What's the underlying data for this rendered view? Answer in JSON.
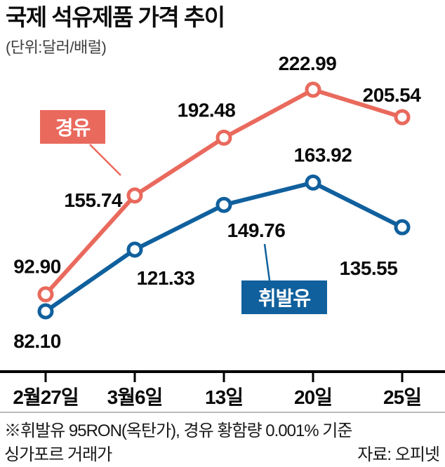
{
  "page": {
    "title": "국제 석유제품 가격 추이",
    "subtitle": "(단위:달러/배럴)",
    "footnote_line1": "※휘발유 95RON(옥탄가), 경유 황함량 0.001% 기준",
    "footnote_line2": "싱가포르 거래가",
    "source": "자료: 오피넷"
  },
  "colors": {
    "diesel": "#e96a5d",
    "gasoline": "#10609d",
    "axis": "#000000",
    "label_text": "#0a0a0a"
  },
  "chart_data": {
    "type": "line",
    "title": "국제 석유제품 가격 추이",
    "unit_label": "(단위:달러/배럴)",
    "categories": [
      "2월27일",
      "3월6일",
      "13일",
      "20일",
      "25일"
    ],
    "series": [
      {
        "name": "경유",
        "color": "#e96a5d",
        "values": [
          92.9,
          155.74,
          192.48,
          222.99,
          205.54
        ]
      },
      {
        "name": "휘발유",
        "color": "#10609d",
        "values": [
          82.1,
          121.33,
          149.76,
          163.92,
          135.55
        ]
      }
    ],
    "xlabel": "",
    "ylabel": "달러/배럴",
    "ylim": [
      60,
      245
    ],
    "grid": false,
    "legend_position": "inline-callouts",
    "marker": "open-circle",
    "source": "자료: 오피넷"
  }
}
